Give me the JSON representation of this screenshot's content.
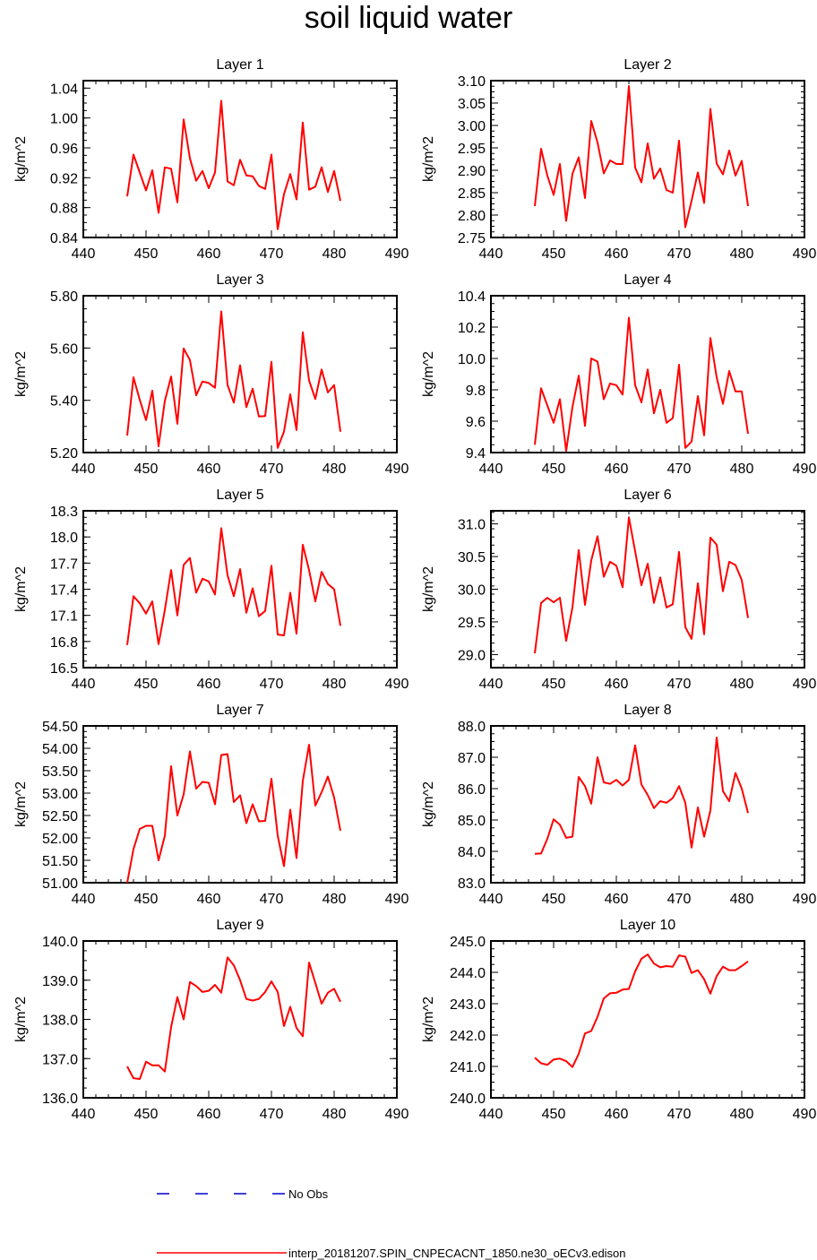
{
  "title": "soil liquid water",
  "chart_data": [
    {
      "type": "line",
      "title": "Layer 1",
      "ylabel": "kg/m^2",
      "xlim": [
        440,
        490
      ],
      "xticks": [
        440,
        450,
        460,
        470,
        480,
        490
      ],
      "ylim": [
        0.84,
        1.05
      ],
      "yticks": [
        0.84,
        0.88,
        0.92,
        0.96,
        1.0,
        1.04
      ],
      "ytick_decimals": 2,
      "series": [
        {
          "name": "interp_20181207.SPIN_CNPECACNT_1850.ne30_oECv3.edison",
          "color": "#ff0000",
          "x": [
            447,
            448,
            449,
            450,
            451,
            452,
            453,
            454,
            455,
            456,
            457,
            458,
            459,
            460,
            461,
            462,
            463,
            464,
            465,
            466,
            467,
            468,
            469,
            470,
            471,
            472,
            473,
            474,
            475,
            476,
            477,
            478,
            479,
            480,
            481
          ],
          "y": [
            0.895,
            0.951,
            0.927,
            0.903,
            0.93,
            0.873,
            0.934,
            0.932,
            0.887,
            0.998,
            0.946,
            0.916,
            0.929,
            0.906,
            0.927,
            1.023,
            0.915,
            0.91,
            0.944,
            0.923,
            0.922,
            0.909,
            0.905,
            0.951,
            0.851,
            0.898,
            0.925,
            0.891,
            0.994,
            0.904,
            0.908,
            0.934,
            0.901,
            0.929,
            0.889
          ]
        }
      ]
    },
    {
      "type": "line",
      "title": "Layer 2",
      "ylabel": "kg/m^2",
      "xlim": [
        440,
        490
      ],
      "xticks": [
        440,
        450,
        460,
        470,
        480,
        490
      ],
      "ylim": [
        2.75,
        3.1
      ],
      "yticks": [
        2.75,
        2.8,
        2.85,
        2.9,
        2.95,
        3.0,
        3.05,
        3.1
      ],
      "ytick_decimals": 2,
      "series": [
        {
          "name": "interp_20181207.SPIN_CNPECACNT_1850.ne30_oECv3.edison",
          "color": "#ff0000",
          "x": [
            447,
            448,
            449,
            450,
            451,
            452,
            453,
            454,
            455,
            456,
            457,
            458,
            459,
            460,
            461,
            462,
            463,
            464,
            465,
            466,
            467,
            468,
            469,
            470,
            471,
            472,
            473,
            474,
            475,
            476,
            477,
            478,
            479,
            480,
            481
          ],
          "y": [
            2.82,
            2.948,
            2.888,
            2.845,
            2.914,
            2.787,
            2.892,
            2.929,
            2.838,
            3.01,
            2.962,
            2.893,
            2.922,
            2.914,
            2.914,
            3.088,
            2.906,
            2.873,
            2.96,
            2.881,
            2.904,
            2.856,
            2.85,
            2.966,
            2.773,
            2.832,
            2.895,
            2.827,
            3.037,
            2.915,
            2.891,
            2.944,
            2.888,
            2.921,
            2.82
          ]
        }
      ]
    },
    {
      "type": "line",
      "title": "Layer 3",
      "ylabel": "kg/m^2",
      "xlim": [
        440,
        490
      ],
      "xticks": [
        440,
        450,
        460,
        470,
        480,
        490
      ],
      "ylim": [
        5.2,
        5.8
      ],
      "yticks": [
        5.2,
        5.4,
        5.6,
        5.8
      ],
      "ytick_decimals": 2,
      "series": [
        {
          "name": "interp_20181207.SPIN_CNPECACNT_1850.ne30_oECv3.edison",
          "color": "#ff0000",
          "x": [
            447,
            448,
            449,
            450,
            451,
            452,
            453,
            454,
            455,
            456,
            457,
            458,
            459,
            460,
            461,
            462,
            463,
            464,
            465,
            466,
            467,
            468,
            469,
            470,
            471,
            472,
            473,
            474,
            475,
            476,
            477,
            478,
            479,
            480,
            481
          ],
          "y": [
            5.265,
            5.488,
            5.402,
            5.324,
            5.437,
            5.224,
            5.397,
            5.491,
            5.31,
            5.598,
            5.554,
            5.419,
            5.472,
            5.466,
            5.448,
            5.74,
            5.459,
            5.391,
            5.534,
            5.374,
            5.444,
            5.338,
            5.34,
            5.547,
            5.218,
            5.28,
            5.423,
            5.286,
            5.66,
            5.476,
            5.405,
            5.518,
            5.43,
            5.458,
            5.28
          ]
        }
      ]
    },
    {
      "type": "line",
      "title": "Layer 4",
      "ylabel": "kg/m^2",
      "xlim": [
        440,
        490
      ],
      "xticks": [
        440,
        450,
        460,
        470,
        480,
        490
      ],
      "ylim": [
        9.4,
        10.4
      ],
      "yticks": [
        9.4,
        9.6,
        9.8,
        10.0,
        10.2,
        10.4
      ],
      "ytick_decimals": 1,
      "series": [
        {
          "name": "interp_20181207.SPIN_CNPECACNT_1850.ne30_oECv3.edison",
          "color": "#ff0000",
          "x": [
            447,
            448,
            449,
            450,
            451,
            452,
            453,
            454,
            455,
            456,
            457,
            458,
            459,
            460,
            461,
            462,
            463,
            464,
            465,
            466,
            467,
            468,
            469,
            470,
            471,
            472,
            473,
            474,
            475,
            476,
            477,
            478,
            479,
            480,
            481
          ],
          "y": [
            9.45,
            9.81,
            9.7,
            9.59,
            9.74,
            9.41,
            9.69,
            9.89,
            9.57,
            10.0,
            9.98,
            9.74,
            9.84,
            9.83,
            9.77,
            10.26,
            9.83,
            9.72,
            9.93,
            9.65,
            9.8,
            9.59,
            9.62,
            9.96,
            9.43,
            9.47,
            9.76,
            9.51,
            10.13,
            9.88,
            9.71,
            9.92,
            9.79,
            9.79,
            9.52
          ]
        }
      ]
    },
    {
      "type": "line",
      "title": "Layer 5",
      "ylabel": "kg/m^2",
      "xlim": [
        440,
        490
      ],
      "xticks": [
        440,
        450,
        460,
        470,
        480,
        490
      ],
      "ylim": [
        16.5,
        18.3
      ],
      "yticks": [
        16.5,
        16.8,
        17.1,
        17.4,
        17.7,
        18.0,
        18.3
      ],
      "ytick_decimals": 1,
      "series": [
        {
          "name": "interp_20181207.SPIN_CNPECACNT_1850.ne30_oECv3.edison",
          "color": "#ff0000",
          "x": [
            447,
            448,
            449,
            450,
            451,
            452,
            453,
            454,
            455,
            456,
            457,
            458,
            459,
            460,
            461,
            462,
            463,
            464,
            465,
            466,
            467,
            468,
            469,
            470,
            471,
            472,
            473,
            474,
            475,
            476,
            477,
            478,
            479,
            480,
            481
          ],
          "y": [
            16.76,
            17.32,
            17.24,
            17.12,
            17.26,
            16.77,
            17.16,
            17.62,
            17.1,
            17.68,
            17.76,
            17.36,
            17.52,
            17.49,
            17.34,
            18.1,
            17.56,
            17.32,
            17.63,
            17.13,
            17.41,
            17.09,
            17.15,
            17.67,
            16.88,
            16.87,
            17.36,
            16.89,
            17.91,
            17.62,
            17.26,
            17.6,
            17.46,
            17.4,
            16.98
          ]
        }
      ]
    },
    {
      "type": "line",
      "title": "Layer 6",
      "ylabel": "kg/m^2",
      "xlim": [
        440,
        490
      ],
      "xticks": [
        440,
        450,
        460,
        470,
        480,
        490
      ],
      "ylim": [
        28.8,
        31.2
      ],
      "yticks": [
        29.0,
        29.5,
        30.0,
        30.5,
        31.0
      ],
      "ytick_decimals": 1,
      "series": [
        {
          "name": "interp_20181207.SPIN_CNPECACNT_1850.ne30_oECv3.edison",
          "color": "#ff0000",
          "x": [
            447,
            448,
            449,
            450,
            451,
            452,
            453,
            454,
            455,
            456,
            457,
            458,
            459,
            460,
            461,
            462,
            463,
            464,
            465,
            466,
            467,
            468,
            469,
            470,
            471,
            472,
            473,
            474,
            475,
            476,
            477,
            478,
            479,
            480,
            481
          ],
          "y": [
            29.02,
            29.79,
            29.87,
            29.8,
            29.87,
            29.21,
            29.72,
            30.6,
            29.76,
            30.44,
            30.81,
            30.19,
            30.42,
            30.36,
            30.03,
            31.1,
            30.58,
            30.06,
            30.39,
            29.79,
            30.18,
            29.72,
            29.77,
            30.57,
            29.42,
            29.24,
            30.09,
            29.31,
            30.79,
            30.68,
            29.97,
            30.42,
            30.37,
            30.14,
            29.56
          ]
        }
      ]
    },
    {
      "type": "line",
      "title": "Layer 7",
      "ylabel": "kg/m^2",
      "xlim": [
        440,
        490
      ],
      "xticks": [
        440,
        450,
        460,
        470,
        480,
        490
      ],
      "ylim": [
        51.0,
        54.5
      ],
      "yticks": [
        51.0,
        51.5,
        52.0,
        52.5,
        53.0,
        53.5,
        54.0,
        54.5
      ],
      "ytick_decimals": 2,
      "series": [
        {
          "name": "interp_20181207.SPIN_CNPECACNT_1850.ne30_oECv3.edison",
          "color": "#ff0000",
          "x": [
            447,
            448,
            449,
            450,
            451,
            452,
            453,
            454,
            455,
            456,
            457,
            458,
            459,
            460,
            461,
            462,
            463,
            464,
            465,
            466,
            467,
            468,
            469,
            470,
            471,
            472,
            473,
            474,
            475,
            476,
            477,
            478,
            479,
            480,
            481
          ],
          "y": [
            51.0,
            51.75,
            52.2,
            52.27,
            52.27,
            51.5,
            52.05,
            53.6,
            52.5,
            52.97,
            53.93,
            53.1,
            53.25,
            53.23,
            52.75,
            53.85,
            53.87,
            52.8,
            52.95,
            52.33,
            52.75,
            52.37,
            52.38,
            53.32,
            52.05,
            51.37,
            52.63,
            51.55,
            53.27,
            54.08,
            52.72,
            53.02,
            53.37,
            52.9,
            52.16
          ]
        }
      ]
    },
    {
      "type": "line",
      "title": "Layer 8",
      "ylabel": "kg/m^2",
      "xlim": [
        440,
        490
      ],
      "xticks": [
        440,
        450,
        460,
        470,
        480,
        490
      ],
      "ylim": [
        83.0,
        88.0
      ],
      "yticks": [
        83.0,
        84.0,
        85.0,
        86.0,
        87.0,
        88.0
      ],
      "ytick_decimals": 1,
      "series": [
        {
          "name": "interp_20181207.SPIN_CNPECACNT_1850.ne30_oECv3.edison",
          "color": "#ff0000",
          "x": [
            447,
            448,
            449,
            450,
            451,
            452,
            453,
            454,
            455,
            456,
            457,
            458,
            459,
            460,
            461,
            462,
            463,
            464,
            465,
            466,
            467,
            468,
            469,
            470,
            471,
            472,
            473,
            474,
            475,
            476,
            477,
            478,
            479,
            480,
            481
          ],
          "y": [
            83.92,
            83.93,
            84.4,
            85.02,
            84.85,
            84.43,
            84.47,
            86.37,
            86.08,
            85.52,
            87.0,
            86.2,
            86.15,
            86.28,
            86.1,
            86.28,
            87.38,
            86.13,
            85.8,
            85.38,
            85.6,
            85.55,
            85.7,
            86.08,
            85.55,
            84.12,
            85.4,
            84.47,
            85.3,
            87.63,
            85.92,
            85.6,
            86.5,
            86.0,
            85.22
          ]
        }
      ]
    },
    {
      "type": "line",
      "title": "Layer 9",
      "ylabel": "kg/m^2",
      "xlim": [
        440,
        490
      ],
      "xticks": [
        440,
        450,
        460,
        470,
        480,
        490
      ],
      "ylim": [
        136.0,
        140.0
      ],
      "yticks": [
        136.0,
        137.0,
        138.0,
        139.0,
        140.0
      ],
      "ytick_decimals": 1,
      "series": [
        {
          "name": "interp_20181207.SPIN_CNPECACNT_1850.ne30_oECv3.edison",
          "color": "#ff0000",
          "x": [
            447,
            448,
            449,
            450,
            451,
            452,
            453,
            454,
            455,
            456,
            457,
            458,
            459,
            460,
            461,
            462,
            463,
            464,
            465,
            466,
            467,
            468,
            469,
            470,
            471,
            472,
            473,
            474,
            475,
            476,
            477,
            478,
            479,
            480,
            481
          ],
          "y": [
            136.8,
            136.5,
            136.48,
            136.92,
            136.83,
            136.83,
            136.67,
            137.8,
            138.57,
            138.0,
            138.95,
            138.85,
            138.7,
            138.73,
            138.88,
            138.68,
            139.58,
            139.38,
            139.0,
            138.52,
            138.48,
            138.52,
            138.7,
            138.97,
            138.7,
            137.83,
            138.32,
            137.78,
            137.57,
            139.45,
            138.93,
            138.4,
            138.68,
            138.78,
            138.45
          ]
        }
      ]
    },
    {
      "type": "line",
      "title": "Layer 10",
      "ylabel": "kg/m^2",
      "xlim": [
        440,
        490
      ],
      "xticks": [
        440,
        450,
        460,
        470,
        480,
        490
      ],
      "ylim": [
        240.0,
        245.0
      ],
      "yticks": [
        240.0,
        241.0,
        242.0,
        243.0,
        244.0,
        245.0
      ],
      "ytick_decimals": 1,
      "series": [
        {
          "name": "interp_20181207.SPIN_CNPECACNT_1850.ne30_oECv3.edison",
          "color": "#ff0000",
          "x": [
            447,
            448,
            449,
            450,
            451,
            452,
            453,
            454,
            455,
            456,
            457,
            458,
            459,
            460,
            461,
            462,
            463,
            464,
            465,
            466,
            467,
            468,
            469,
            470,
            471,
            472,
            473,
            474,
            475,
            476,
            477,
            478,
            479,
            480,
            481
          ],
          "y": [
            241.28,
            241.1,
            241.05,
            241.22,
            241.25,
            241.17,
            240.98,
            241.4,
            242.05,
            242.13,
            242.58,
            243.17,
            243.33,
            243.35,
            243.45,
            243.47,
            244.03,
            244.43,
            244.57,
            244.28,
            244.16,
            244.2,
            244.18,
            244.54,
            244.5,
            243.98,
            244.07,
            243.78,
            243.32,
            243.88,
            244.18,
            244.07,
            244.07,
            244.2,
            244.35
          ]
        }
      ]
    }
  ],
  "legend": {
    "entries": [
      {
        "label": "No Obs",
        "color": "#0000cc",
        "dash": true
      },
      {
        "label": "interp_20181207.SPIN_CNPECACNT_1850.ne30_oECv3.edison",
        "color": "#ff0000",
        "dash": false
      }
    ]
  }
}
